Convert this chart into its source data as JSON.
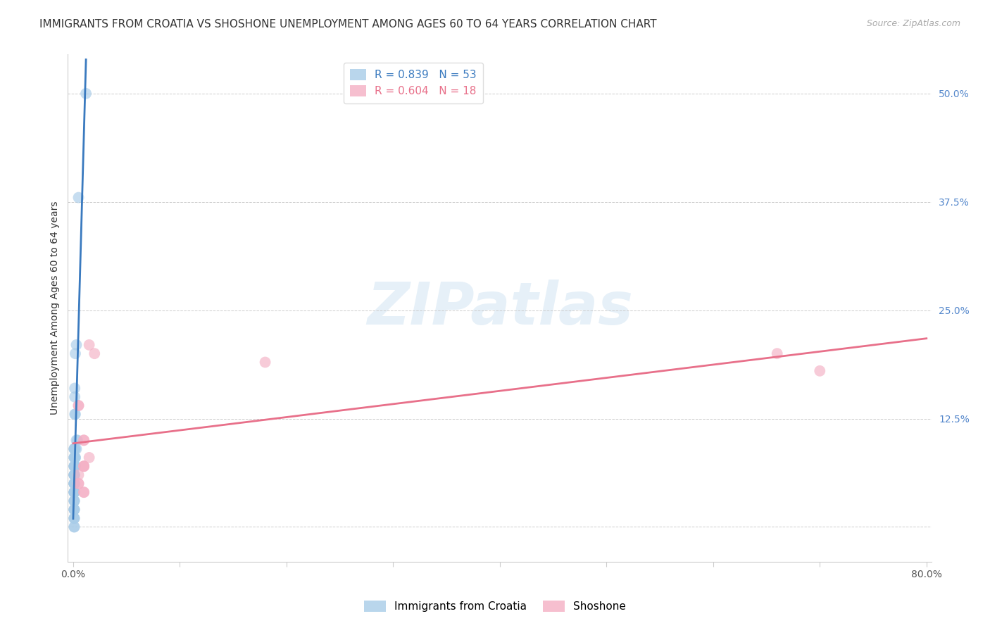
{
  "title": "IMMIGRANTS FROM CROATIA VS SHOSHONE UNEMPLOYMENT AMONG AGES 60 TO 64 YEARS CORRELATION CHART",
  "source": "Source: ZipAtlas.com",
  "ylabel": "Unemployment Among Ages 60 to 64 years",
  "watermark": "ZIPatlas",
  "legend1_label": "R = 0.839   N = 53",
  "legend2_label": "R = 0.604   N = 18",
  "series1_color": "#a8cce8",
  "series2_color": "#f4afc4",
  "trendline1_color": "#3a7abf",
  "trendline2_color": "#e8708a",
  "xlim": [
    -0.005,
    0.805
  ],
  "ylim": [
    -0.04,
    0.545
  ],
  "xticks": [
    0.0,
    0.1,
    0.2,
    0.3,
    0.4,
    0.5,
    0.6,
    0.7,
    0.8
  ],
  "xticklabels": [
    "0.0%",
    "",
    "",
    "",
    "",
    "",
    "",
    "",
    "80.0%"
  ],
  "yticks": [
    0.0,
    0.125,
    0.25,
    0.375,
    0.5
  ],
  "yticklabels": [
    "",
    "12.5%",
    "25.0%",
    "37.5%",
    "50.0%"
  ],
  "croatia_x": [
    0.012,
    0.005,
    0.003,
    0.002,
    0.0015,
    0.0015,
    0.0015,
    0.002,
    0.003,
    0.004,
    0.001,
    0.001,
    0.002,
    0.001,
    0.003,
    0.002,
    0.001,
    0.001,
    0.001,
    0.002,
    0.002,
    0.001,
    0.001,
    0.001,
    0.002,
    0.001,
    0.001,
    0.001,
    0.001,
    0.001,
    0.001,
    0.001,
    0.001,
    0.001,
    0.001,
    0.001,
    0.001,
    0.001,
    0.001,
    0.001,
    0.001,
    0.001,
    0.001,
    0.001,
    0.001,
    0.001,
    0.001,
    0.001,
    0.001,
    0.001,
    0.001,
    0.001,
    0.001
  ],
  "croatia_y": [
    0.5,
    0.38,
    0.21,
    0.2,
    0.16,
    0.15,
    0.13,
    0.13,
    0.1,
    0.1,
    0.09,
    0.09,
    0.09,
    0.09,
    0.09,
    0.08,
    0.08,
    0.08,
    0.08,
    0.08,
    0.07,
    0.07,
    0.07,
    0.07,
    0.07,
    0.07,
    0.06,
    0.06,
    0.06,
    0.06,
    0.06,
    0.05,
    0.05,
    0.05,
    0.05,
    0.05,
    0.04,
    0.04,
    0.04,
    0.04,
    0.04,
    0.03,
    0.03,
    0.03,
    0.02,
    0.02,
    0.02,
    0.02,
    0.01,
    0.01,
    0.01,
    0.0,
    0.0
  ],
  "shoshone_x": [
    0.005,
    0.005,
    0.01,
    0.02,
    0.015,
    0.01,
    0.01,
    0.005,
    0.005,
    0.005,
    0.01,
    0.18,
    0.01,
    0.01,
    0.01,
    0.66,
    0.7,
    0.015
  ],
  "shoshone_y": [
    0.14,
    0.06,
    0.1,
    0.2,
    0.08,
    0.07,
    0.07,
    0.14,
    0.05,
    0.05,
    0.1,
    0.19,
    0.07,
    0.04,
    0.04,
    0.2,
    0.18,
    0.21
  ],
  "title_fontsize": 11,
  "axis_label_fontsize": 10,
  "tick_fontsize": 10,
  "legend_fontsize": 11
}
